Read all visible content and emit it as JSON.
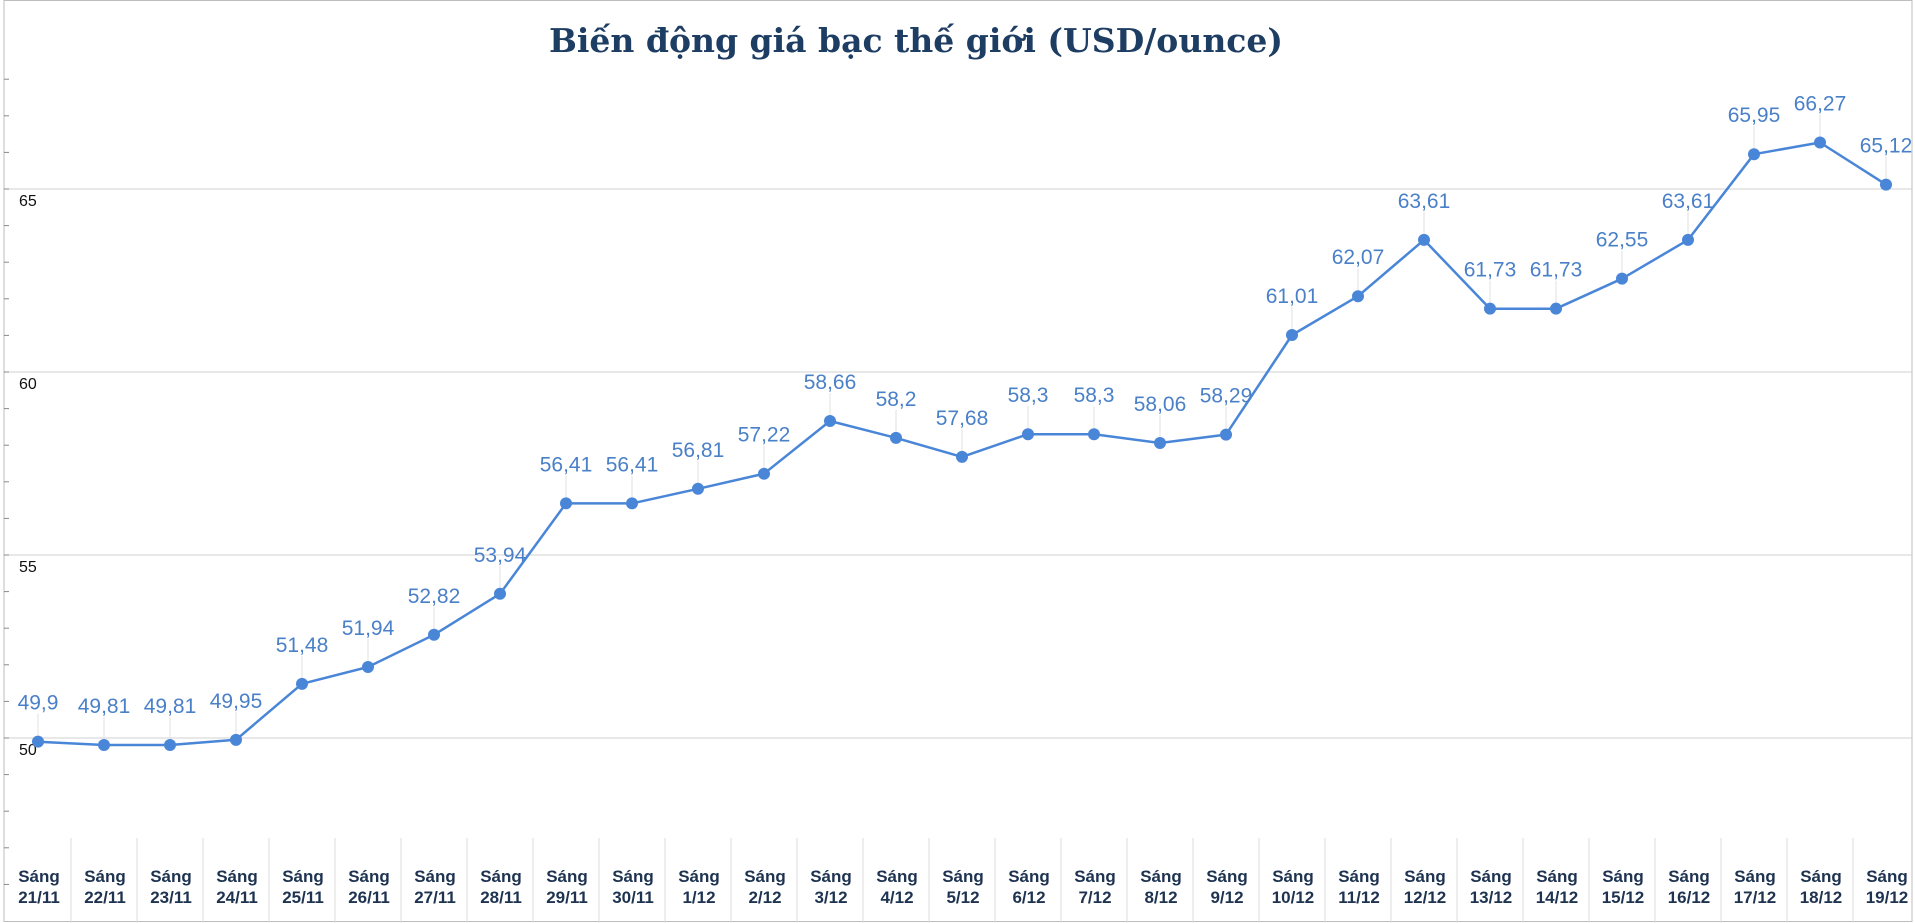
{
  "chart_data": {
    "type": "line",
    "title": "Biến động giá bạc thế giới (USD/ounce)",
    "xlabel": "",
    "ylabel": "",
    "ylim": [
      45.2,
      68.6
    ],
    "yticks": [
      50,
      55,
      60,
      65
    ],
    "grid": true,
    "line_color": "#4a86d8",
    "categories": [
      "Sáng 21/11",
      "Sáng 22/11",
      "Sáng 23/11",
      "Sáng 24/11",
      "Sáng 25/11",
      "Sáng 26/11",
      "Sáng 27/11",
      "Sáng 28/11",
      "Sáng 29/11",
      "Sáng 30/11",
      "Sáng 1/12",
      "Sáng 2/12",
      "Sáng 3/12",
      "Sáng 4/12",
      "Sáng 5/12",
      "Sáng 6/12",
      "Sáng 7/12",
      "Sáng 8/12",
      "Sáng 9/12",
      "Sáng 10/12",
      "Sáng 11/12",
      "Sáng 12/12",
      "Sáng 13/12",
      "Sáng 14/12",
      "Sáng 15/12",
      "Sáng 16/12",
      "Sáng 17/12",
      "Sáng 18/12",
      "Sáng 19/12"
    ],
    "values": [
      49.9,
      49.81,
      49.81,
      49.95,
      51.48,
      51.94,
      52.82,
      53.94,
      56.41,
      56.41,
      56.81,
      57.22,
      58.66,
      58.2,
      57.68,
      58.3,
      58.3,
      58.06,
      58.29,
      61.01,
      62.07,
      63.61,
      61.73,
      61.73,
      62.55,
      63.61,
      65.95,
      66.27,
      65.12
    ],
    "labels": [
      "49,9",
      "49,81",
      "49,81",
      "49,95",
      "51,48",
      "51,94",
      "52,82",
      "53,94",
      "56,41",
      "56,41",
      "56,81",
      "57,22",
      "58,66",
      "58,2",
      "57,68",
      "58,3",
      "58,3",
      "58,06",
      "58,29",
      "61,01",
      "62,07",
      "63,61",
      "61,73",
      "61,73",
      "62,55",
      "63,61",
      "65,95",
      "66,27",
      "65,12"
    ]
  }
}
